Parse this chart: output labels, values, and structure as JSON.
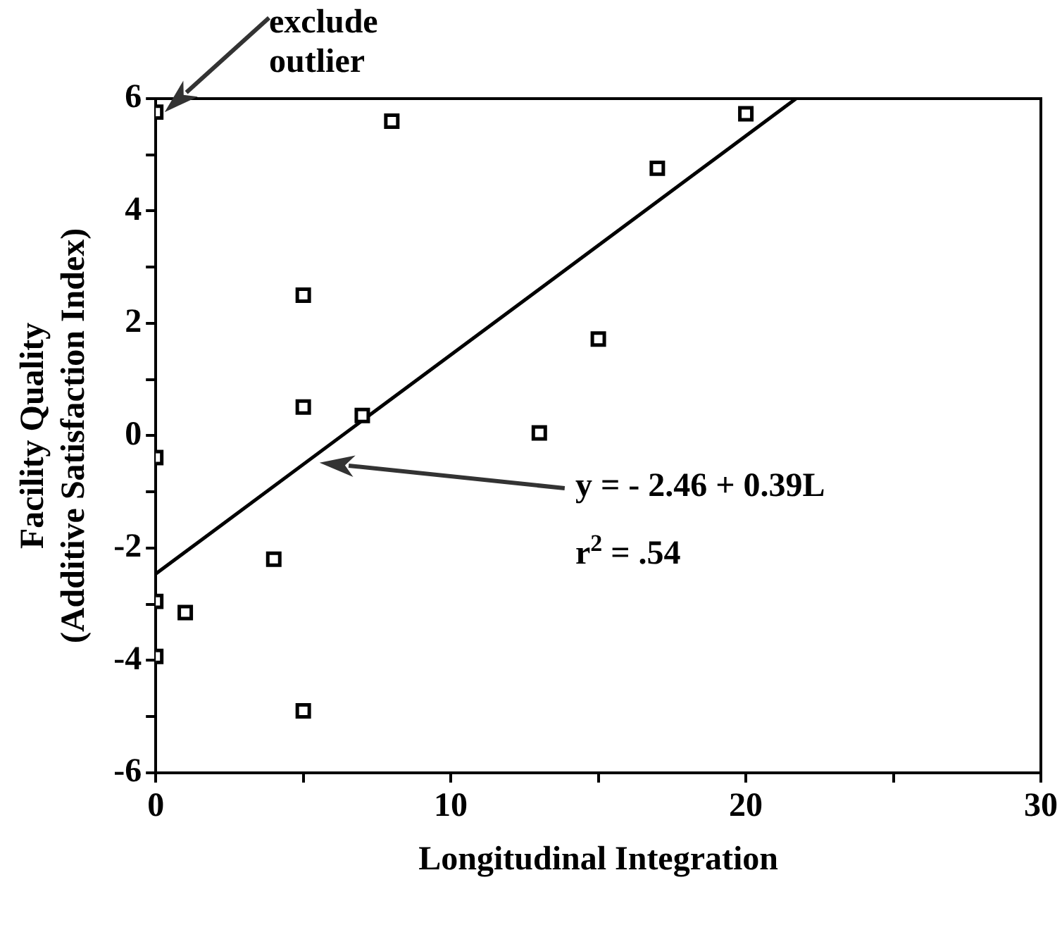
{
  "chart_data": {
    "type": "scatter",
    "xlabel": "Longitudinal Integration",
    "ylabel": "Facility Quality\n(Additive Satisfaction Index)",
    "series": [
      {
        "color": "#000000",
        "marker": "square",
        "x": [
          0,
          8,
          20,
          17,
          5,
          15,
          5,
          7,
          13,
          0,
          4,
          0,
          1,
          0,
          5
        ],
        "values": [
          5.76,
          5.6,
          5.73,
          4.76,
          2.5,
          1.72,
          0.51,
          0.36,
          0.05,
          -0.39,
          -2.2,
          -2.95,
          -3.15,
          -3.93,
          -4.9
        ]
      },
      {
        "type": "line",
        "color": "#000000",
        "marker": "none",
        "x": [
          0,
          21.7
        ],
        "values": [
          -2.46,
          6.0
        ]
      }
    ],
    "xlim": [
      0,
      30
    ],
    "xticks": [
      0,
      {
        "value": 5,
        "label": null
      },
      10,
      {
        "value": 15,
        "label": null
      },
      20,
      {
        "value": 25,
        "label": null
      },
      30
    ],
    "ylim": [
      -6,
      6
    ],
    "yticks": [
      -6,
      {
        "value": -5,
        "label": null
      },
      -4,
      {
        "value": -3,
        "label": null
      },
      -2,
      {
        "value": -1,
        "label": null
      },
      0,
      {
        "value": 1,
        "label": null
      },
      2,
      {
        "value": 3,
        "label": null
      },
      4,
      {
        "value": 5,
        "label": null
      },
      6
    ],
    "grid": false,
    "legend": false,
    "annotations": [
      "exclude outlier",
      "y =  - 2.46 + 0.39L",
      "r$^{2}$ = .54"
    ]
  }
}
